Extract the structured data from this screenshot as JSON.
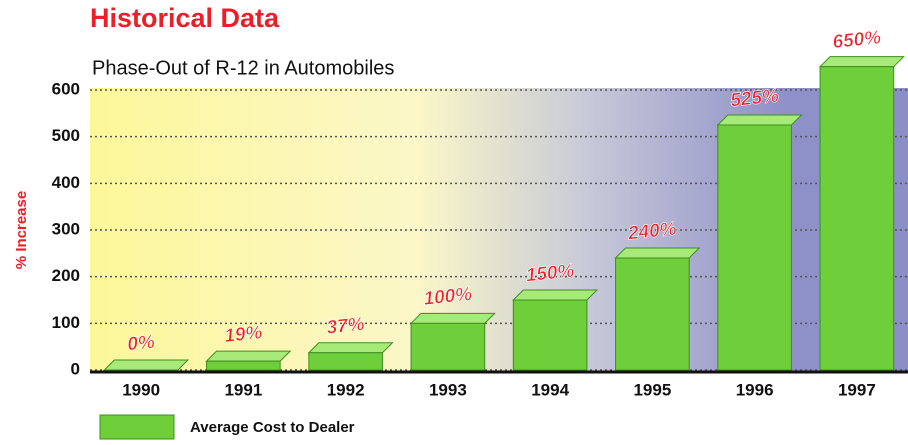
{
  "chart_data": {
    "type": "bar",
    "title": "Historical Data",
    "subtitle": "Phase-Out of R-12 in Automobiles",
    "y_label": "% Increase",
    "categories": [
      "1990",
      "1991",
      "1992",
      "1993",
      "1994",
      "1995",
      "1996",
      "1997"
    ],
    "series": [
      {
        "name": "Average Cost to Dealer",
        "color": "#6fcf3a",
        "values": [
          0,
          19,
          37,
          100,
          150,
          240,
          525,
          650
        ],
        "value_labels": [
          "0%",
          "19%",
          "37%",
          "100%",
          "150%",
          "240%",
          "525%",
          "650%"
        ]
      }
    ],
    "ylim": [
      0,
      600
    ],
    "yticks": [
      0,
      100,
      200,
      300,
      400,
      500,
      600
    ],
    "grid": true
  }
}
